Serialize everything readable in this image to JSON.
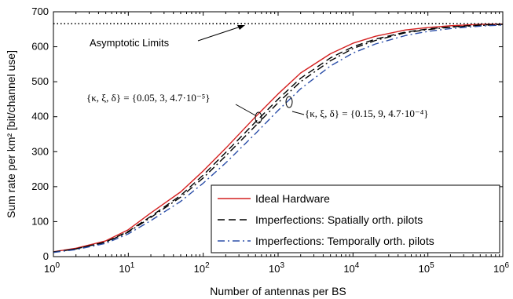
{
  "chart_data": {
    "type": "line",
    "title": "",
    "xlabel": "Number of antennas per BS",
    "ylabel": "Sum rate per km² [bit/channel use]",
    "xscale": "log",
    "xlim": [
      1,
      1000000
    ],
    "ylim": [
      0,
      700
    ],
    "grid": false,
    "legend_position": "bottom-right",
    "x_ticks": [
      {
        "value": 1,
        "base": "10",
        "exp": "0"
      },
      {
        "value": 10,
        "base": "10",
        "exp": "1"
      },
      {
        "value": 100,
        "base": "10",
        "exp": "2"
      },
      {
        "value": 1000,
        "base": "10",
        "exp": "3"
      },
      {
        "value": 10000,
        "base": "10",
        "exp": "4"
      },
      {
        "value": 100000,
        "base": "10",
        "exp": "5"
      },
      {
        "value": 1000000,
        "base": "10",
        "exp": "6"
      }
    ],
    "y_ticks": [
      0,
      100,
      200,
      300,
      400,
      500,
      600,
      700
    ],
    "x": [
      1,
      2,
      5,
      10,
      20,
      50,
      100,
      200,
      500,
      1000,
      2000,
      5000,
      10000,
      20000,
      50000,
      100000,
      200000,
      500000,
      1000000
    ],
    "series": [
      {
        "name": "Ideal Hardware",
        "color": "#d42020",
        "dash": "solid",
        "values": [
          14,
          24,
          45,
          77,
          125,
          185,
          245,
          310,
          400,
          465,
          525,
          580,
          610,
          630,
          648,
          655,
          660,
          664,
          665
        ]
      },
      {
        "name": "Imperfections: Spatially orth. pilots",
        "color": "#000000",
        "dash": "dashed",
        "values": [
          13,
          22,
          42,
          72,
          115,
          175,
          233,
          298,
          385,
          450,
          510,
          568,
          600,
          622,
          642,
          651,
          657,
          662,
          664
        ]
      },
      {
        "name": "",
        "color": "#000000",
        "dash": "dashdot",
        "values": [
          13,
          22,
          41,
          70,
          112,
          170,
          225,
          288,
          374,
          440,
          500,
          560,
          595,
          618,
          640,
          649,
          656,
          661,
          663
        ]
      },
      {
        "name": "Imperfections: Temporally orth. pilots",
        "color": "#2b4ea8",
        "dash": "dashdot",
        "values": [
          12,
          20,
          38,
          65,
          103,
          158,
          210,
          268,
          352,
          418,
          480,
          545,
          582,
          608,
          632,
          644,
          652,
          659,
          662
        ]
      }
    ],
    "asymptote": {
      "value": 666,
      "style": "dotted",
      "color": "#000000"
    },
    "annotations": {
      "asymptote_label": "Asymptotic Limits",
      "params_a": "{κ, ξ, δ} = {0.05, 3, 4.7·10⁻⁵}",
      "params_b": "{κ, ξ, δ} = {0.15, 9, 4.7·10⁻⁴}"
    }
  }
}
